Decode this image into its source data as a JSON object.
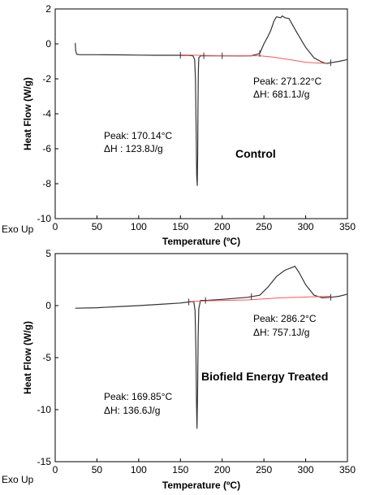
{
  "chart_data": [
    {
      "type": "line",
      "title": "Control",
      "xlabel": "Temperature (ºC)",
      "ylabel": "Heat Flow (W/g)",
      "exo_label": "Exo Up",
      "xlim": [
        0,
        350
      ],
      "ylim": [
        -10,
        2
      ],
      "xticks": [
        "0",
        "50",
        "100",
        "150",
        "200",
        "250",
        "300",
        "350"
      ],
      "xtick_values": [
        0,
        50,
        100,
        150,
        200,
        250,
        300,
        350
      ],
      "yticks": [
        "2",
        "0",
        "-2",
        "-4",
        "-6",
        "-8",
        "-10"
      ],
      "ytick_values": [
        2,
        0,
        -2,
        -4,
        -6,
        -8,
        -10
      ],
      "series": [
        {
          "color": "#333333",
          "x": [
            24,
            24.5,
            26,
            30,
            50,
            80,
            100,
            120,
            140,
            150,
            160,
            165,
            167,
            168,
            169,
            169.5,
            170.1,
            170.6,
            171,
            171.5,
            172,
            174,
            178,
            190,
            200,
            220,
            235,
            245,
            250,
            255,
            258,
            262,
            265,
            270,
            272,
            275,
            280,
            290,
            300,
            310,
            320,
            325,
            330,
            340,
            350
          ],
          "y": [
            0.05,
            -0.4,
            -0.6,
            -0.62,
            -0.62,
            -0.63,
            -0.64,
            -0.65,
            -0.65,
            -0.65,
            -0.66,
            -0.68,
            -0.9,
            -2.0,
            -5.5,
            -7.5,
            -8.1,
            -6.5,
            -3.5,
            -1.5,
            -0.8,
            -0.68,
            -0.68,
            -0.68,
            -0.68,
            -0.69,
            -0.68,
            -0.55,
            0.0,
            0.45,
            0.75,
            1.3,
            1.55,
            1.5,
            1.6,
            1.5,
            1.45,
            0.6,
            -0.2,
            -0.8,
            -1.05,
            -1.12,
            -1.08,
            -1.0,
            -0.9
          ]
        },
        {
          "color": "#ff5555",
          "x": [
            150,
            190,
            200,
            230,
            245,
            260,
            280,
            300,
            320,
            325
          ],
          "y": [
            -0.63,
            -0.67,
            -0.68,
            -0.68,
            -0.68,
            -0.75,
            -0.9,
            -1.05,
            -1.1,
            -1.12
          ]
        }
      ],
      "annotations": [
        {
          "line1": "Peak: 271.22°C",
          "line2": "ΔH:    681.1J/g"
        },
        {
          "line1": "Peak: 170.14°C",
          "line2": "ΔH :    123.8J/g"
        }
      ]
    },
    {
      "type": "line",
      "title": "Biofield Energy Treated",
      "xlabel": "Temperature (ºC)",
      "ylabel": "Heat Flow (W/g)",
      "exo_label": "Exo Up",
      "xlim": [
        0,
        350
      ],
      "ylim": [
        -15,
        5
      ],
      "xticks": [
        "0",
        "50",
        "100",
        "150",
        "200",
        "250",
        "300",
        "350"
      ],
      "xtick_values": [
        0,
        50,
        100,
        150,
        200,
        250,
        300,
        350
      ],
      "yticks": [
        "5",
        "0",
        "-5",
        "-10",
        "-15"
      ],
      "ytick_values": [
        5,
        0,
        -5,
        -10,
        -15
      ],
      "series": [
        {
          "color": "#333333",
          "x": [
            24,
            50,
            80,
            100,
            130,
            150,
            160,
            166,
            167.5,
            168.5,
            169.2,
            169.85,
            170.5,
            171.2,
            172,
            174,
            180,
            200,
            230,
            245,
            255,
            265,
            275,
            285,
            287,
            292,
            300,
            310,
            320,
            330,
            340,
            350
          ],
          "y": [
            -0.25,
            -0.2,
            -0.08,
            0.0,
            0.15,
            0.25,
            0.35,
            0.4,
            -0.5,
            -4.0,
            -9.0,
            -11.8,
            -8.5,
            -3.0,
            -0.3,
            0.5,
            0.5,
            0.6,
            0.8,
            1.0,
            1.8,
            2.8,
            3.4,
            3.7,
            3.8,
            3.2,
            2.0,
            1.0,
            0.75,
            0.8,
            0.9,
            1.1
          ]
        },
        {
          "color": "#ff5555",
          "x": [
            160,
            180,
            230,
            250,
            270,
            290,
            310,
            330
          ],
          "y": [
            0.4,
            0.45,
            0.55,
            0.65,
            0.75,
            0.8,
            0.85,
            0.9
          ]
        }
      ],
      "annotations": [
        {
          "line1": "Peak: 286.2°C",
          "line2": "ΔH:    757.1J/g"
        },
        {
          "line1": "Peak: 169.85°C",
          "line2": "ΔH:    136.6J/g"
        }
      ]
    }
  ]
}
